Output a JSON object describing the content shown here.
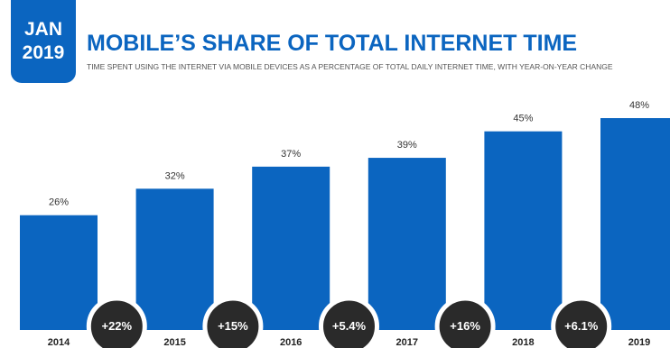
{
  "header": {
    "date_month": "JAN",
    "date_year": "2019",
    "title": "MOBILE’S SHARE OF TOTAL INTERNET TIME",
    "subtitle": "TIME SPENT USING THE INTERNET VIA MOBILE DEVICES AS A PERCENTAGE OF TOTAL DAILY INTERNET TIME, WITH YEAR-ON-YEAR CHANGE"
  },
  "colors": {
    "bar": "#0b65c0",
    "change_circle": "#2a2a2a",
    "badge": "#0b65c0"
  },
  "chart_data": {
    "type": "bar",
    "categories": [
      "2014",
      "2015",
      "2016",
      "2017",
      "2018",
      "2019"
    ],
    "values": [
      26,
      32,
      37,
      39,
      45,
      48
    ],
    "value_labels": [
      "26%",
      "32%",
      "37%",
      "39%",
      "45%",
      "48%"
    ],
    "yoy_changes": [
      "+22%",
      "+15%",
      "+5.4%",
      "+16%",
      "+6.1%"
    ],
    "ylim": [
      0,
      48
    ],
    "grid": false
  }
}
